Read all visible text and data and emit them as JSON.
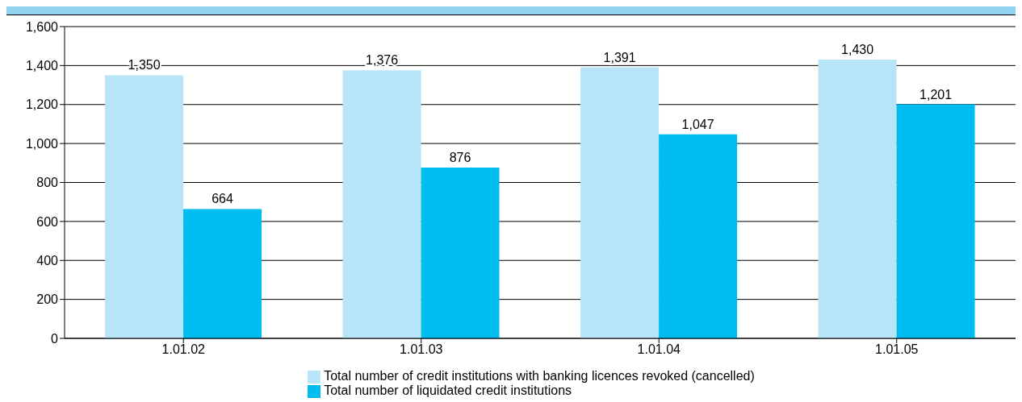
{
  "chart_data": {
    "type": "bar",
    "categories": [
      "1.01.02",
      "1.01.03",
      "1.01.04",
      "1.01.05"
    ],
    "series": [
      {
        "name": "Total number of credit institutions with banking licences revoked (cancelled)",
        "color": "#b8e4f8",
        "values": [
          1350,
          1376,
          1391,
          1430
        ],
        "value_labels": [
          "1,350",
          "1,376",
          "1,391",
          "1,430"
        ]
      },
      {
        "name": "Total number of liquidated credit institutions",
        "color": "#00bdf0",
        "values": [
          664,
          876,
          1047,
          1201
        ],
        "value_labels": [
          "664",
          "876",
          "1,047",
          "1,201"
        ]
      }
    ],
    "ylim": [
      0,
      1600
    ],
    "yticks": [
      0,
      200,
      400,
      600,
      800,
      {
        "value": 1000,
        "label": "1,000"
      },
      {
        "value": 1200,
        "label": "1,200"
      },
      {
        "value": 1400,
        "label": "1,400"
      },
      {
        "value": 1600,
        "label": "1,600"
      }
    ],
    "grid": "y",
    "legend": "bottom"
  }
}
